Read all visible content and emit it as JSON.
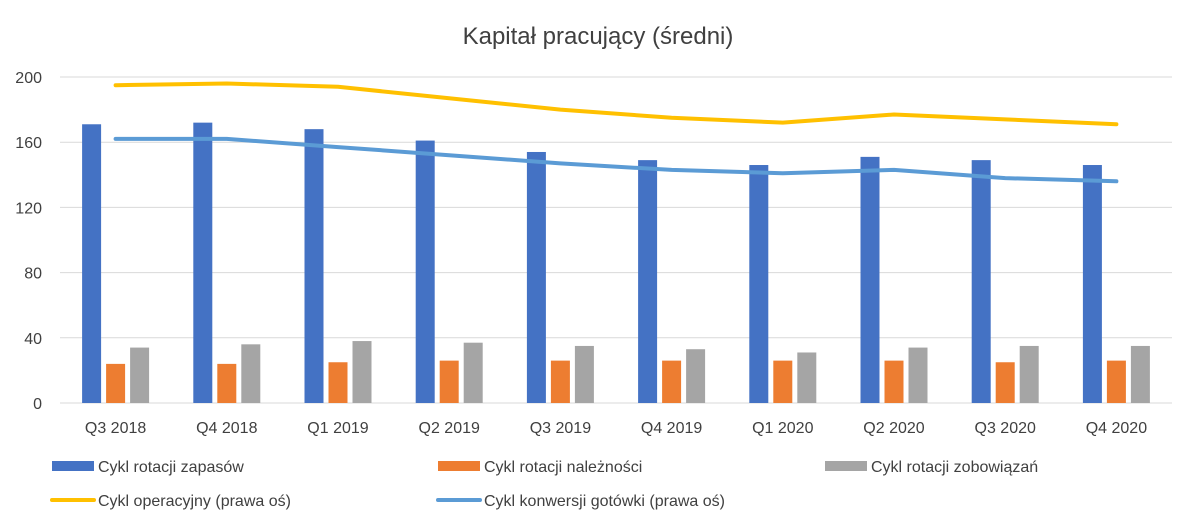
{
  "chart_data": {
    "type": "bar",
    "title": "Kapitał pracujący (średni)",
    "categories": [
      "Q3 2018",
      "Q4 2018",
      "Q1 2019",
      "Q2 2019",
      "Q3 2019",
      "Q4 2019",
      "Q1 2020",
      "Q2 2020",
      "Q3 2020",
      "Q4 2020"
    ],
    "ylim": [
      0,
      200
    ],
    "yticks": [
      "0",
      "40",
      "80",
      "120",
      "160",
      "200"
    ],
    "grid": true,
    "legend_position": "bottom",
    "bar_series": [
      {
        "name": "Cykl rotacji zapasów",
        "color": "#4472c4",
        "values": [
          171,
          172,
          168,
          161,
          154,
          149,
          146,
          151,
          149,
          146
        ]
      },
      {
        "name": "Cykl rotacji należności",
        "color": "#ed7d31",
        "values": [
          24,
          24,
          25,
          26,
          26,
          26,
          26,
          26,
          25,
          26
        ]
      },
      {
        "name": "Cykl rotacji zobowiązań",
        "color": "#a5a5a5",
        "values": [
          34,
          36,
          38,
          37,
          35,
          33,
          31,
          34,
          35,
          35
        ]
      }
    ],
    "line_series": [
      {
        "name": "Cykl operacyjny (prawa oś)",
        "color": "#ffc000",
        "values": [
          195,
          196,
          194,
          187,
          180,
          175,
          172,
          177,
          174,
          171
        ]
      },
      {
        "name": "Cykl konwersji gotówki (prawa oś)",
        "color": "#5b9bd5",
        "values": [
          162,
          162,
          157,
          152,
          147,
          143,
          141,
          143,
          138,
          136
        ]
      }
    ]
  }
}
